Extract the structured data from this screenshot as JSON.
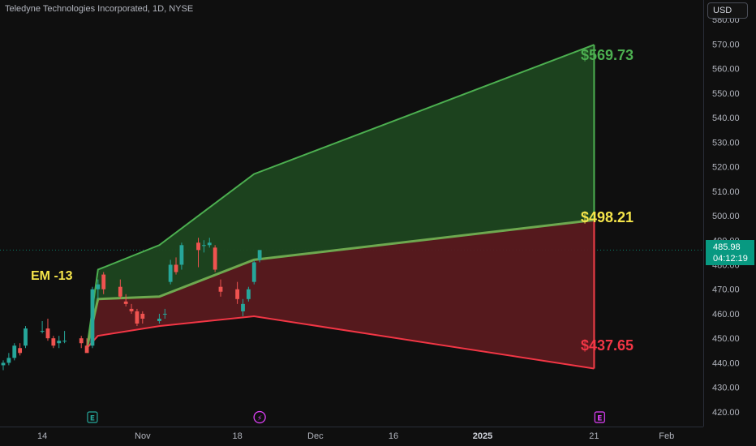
{
  "header": {
    "title": "Teledyne Technologies Incorporated, 1D, NYSE",
    "currency": "USD"
  },
  "last_price": {
    "value": "485.98",
    "countdown": "04:12:19"
  },
  "annotations": {
    "em_label": "EM -13",
    "upper_label": "$569.73",
    "mid_label": "$498.21",
    "lower_label": "$437.65"
  },
  "colors": {
    "background": "#0f0f0f",
    "up_candle": "#26a69a",
    "down_candle": "#ef5350",
    "upper_band_fill": "#1e4620",
    "upper_band_line": "#4caf50",
    "lower_band_fill": "#5a1a1f",
    "lower_band_line": "#f23645",
    "mid_line": "#6ea84f",
    "upper_label": "#4caf50",
    "mid_label": "#f5e54a",
    "lower_label": "#f23645",
    "event_earnings": "#26a69a",
    "event_dividend": "#e040fb"
  },
  "chart_data": {
    "type": "candlestick",
    "title": "Teledyne Technologies Incorporated, 1D, NYSE",
    "y_axis": {
      "ticks": [
        "580.00",
        "570.00",
        "560.00",
        "550.00",
        "540.00",
        "530.00",
        "520.00",
        "510.00",
        "500.00",
        "490.00",
        "480.00",
        "470.00",
        "460.00",
        "450.00",
        "440.00",
        "430.00",
        "420.00"
      ],
      "range": [
        414,
        588
      ]
    },
    "x_axis": {
      "ticks": [
        {
          "label": "14",
          "date": "2024-10-14"
        },
        {
          "label": "Nov",
          "date": "2024-11-01"
        },
        {
          "label": "18",
          "date": "2024-11-18"
        },
        {
          "label": "Dec",
          "date": "2024-12-02"
        },
        {
          "label": "16",
          "date": "2024-12-16"
        },
        {
          "label": "2025",
          "date": "2025-01-01",
          "bold": true
        },
        {
          "label": "21",
          "date": "2025-01-21"
        },
        {
          "label": "Feb",
          "date": "2025-02-03"
        }
      ],
      "range": [
        "2024-10-07",
        "2025-02-09"
      ]
    },
    "candles": [
      {
        "date": "2024-10-07",
        "o": 439,
        "h": 441,
        "l": 437,
        "c": 440
      },
      {
        "date": "2024-10-08",
        "o": 440,
        "h": 444,
        "l": 439,
        "c": 442
      },
      {
        "date": "2024-10-09",
        "o": 442,
        "h": 448,
        "l": 441,
        "c": 447
      },
      {
        "date": "2024-10-10",
        "o": 446,
        "h": 448,
        "l": 443,
        "c": 444
      },
      {
        "date": "2024-10-11",
        "o": 447,
        "h": 455,
        "l": 446,
        "c": 454
      },
      {
        "date": "2024-10-14",
        "o": 453,
        "h": 457,
        "l": 452,
        "c": 453
      },
      {
        "date": "2024-10-15",
        "o": 454,
        "h": 458,
        "l": 449,
        "c": 450
      },
      {
        "date": "2024-10-16",
        "o": 450,
        "h": 451,
        "l": 446,
        "c": 447
      },
      {
        "date": "2024-10-17",
        "o": 448,
        "h": 451,
        "l": 446,
        "c": 449
      },
      {
        "date": "2024-10-18",
        "o": 449,
        "h": 453,
        "l": 448,
        "c": 449
      },
      {
        "date": "2024-10-21",
        "o": 450,
        "h": 451,
        "l": 446,
        "c": 448
      },
      {
        "date": "2024-10-22",
        "o": 447,
        "h": 450,
        "l": 445,
        "c": 444
      },
      {
        "date": "2024-10-23",
        "o": 447,
        "h": 471,
        "l": 446,
        "c": 470
      },
      {
        "date": "2024-10-24",
        "o": 470,
        "h": 474,
        "l": 466,
        "c": 472
      },
      {
        "date": "2024-10-25",
        "o": 476,
        "h": 477,
        "l": 468,
        "c": 470
      },
      {
        "date": "2024-10-28",
        "o": 471,
        "h": 474,
        "l": 466,
        "c": 467
      },
      {
        "date": "2024-10-29",
        "o": 465,
        "h": 468,
        "l": 463,
        "c": 464
      },
      {
        "date": "2024-10-30",
        "o": 462,
        "h": 464,
        "l": 460,
        "c": 461
      },
      {
        "date": "2024-10-31",
        "o": 461,
        "h": 462,
        "l": 455,
        "c": 456
      },
      {
        "date": "2024-11-01",
        "o": 460,
        "h": 461,
        "l": 456,
        "c": 458
      },
      {
        "date": "2024-11-04",
        "o": 457,
        "h": 460,
        "l": 456,
        "c": 458
      },
      {
        "date": "2024-11-05",
        "o": 460,
        "h": 462,
        "l": 458,
        "c": 460
      },
      {
        "date": "2024-11-06",
        "o": 473,
        "h": 482,
        "l": 472,
        "c": 480
      },
      {
        "date": "2024-11-07",
        "o": 480,
        "h": 483,
        "l": 476,
        "c": 477
      },
      {
        "date": "2024-11-08",
        "o": 480,
        "h": 489,
        "l": 478,
        "c": 488
      },
      {
        "date": "2024-11-11",
        "o": 489,
        "h": 491,
        "l": 479,
        "c": 486
      },
      {
        "date": "2024-11-12",
        "o": 488,
        "h": 490,
        "l": 485,
        "c": 488
      },
      {
        "date": "2024-11-13",
        "o": 488,
        "h": 491,
        "l": 487,
        "c": 489
      },
      {
        "date": "2024-11-14",
        "o": 487,
        "h": 488,
        "l": 477,
        "c": 478
      },
      {
        "date": "2024-11-15",
        "o": 471,
        "h": 474,
        "l": 467,
        "c": 469
      },
      {
        "date": "2024-11-18",
        "o": 470,
        "h": 473,
        "l": 464,
        "c": 466
      },
      {
        "date": "2024-11-19",
        "o": 461,
        "h": 466,
        "l": 459,
        "c": 464
      },
      {
        "date": "2024-11-20",
        "o": 466,
        "h": 471,
        "l": 465,
        "c": 470
      },
      {
        "date": "2024-11-21",
        "o": 473,
        "h": 482,
        "l": 472,
        "c": 481
      },
      {
        "date": "2024-11-22",
        "o": 482,
        "h": 486,
        "l": 481,
        "c": 486
      }
    ],
    "expected_move": {
      "label": "EM -13",
      "upper": [
        {
          "date": "2024-10-22",
          "value": 446
        },
        {
          "date": "2024-10-24",
          "value": 478
        },
        {
          "date": "2024-11-04",
          "value": 488
        },
        {
          "date": "2024-11-21",
          "value": 517
        },
        {
          "date": "2025-01-21",
          "value": 569.73
        }
      ],
      "mid": [
        {
          "date": "2024-10-22",
          "value": 446
        },
        {
          "date": "2024-10-24",
          "value": 466
        },
        {
          "date": "2024-11-04",
          "value": 467
        },
        {
          "date": "2024-11-21",
          "value": 482
        },
        {
          "date": "2025-01-21",
          "value": 498.21
        }
      ],
      "lower": [
        {
          "date": "2024-10-22",
          "value": 446
        },
        {
          "date": "2024-10-24",
          "value": 451
        },
        {
          "date": "2024-11-04",
          "value": 455
        },
        {
          "date": "2024-11-21",
          "value": 459
        },
        {
          "date": "2025-01-21",
          "value": 437.65
        }
      ],
      "upper_label": "$569.73",
      "mid_label": "$498.21",
      "lower_label": "$437.65"
    },
    "last_price": 485.98,
    "events": [
      {
        "date": "2024-10-23",
        "glyph": "E",
        "kind": "earnings",
        "color": "#26a69a"
      },
      {
        "date": "2024-11-22",
        "glyph": "⚡",
        "kind": "dividend",
        "color": "#e040fb"
      },
      {
        "date": "2025-01-22",
        "glyph": "E",
        "kind": "earnings",
        "color": "#e040fb"
      }
    ]
  }
}
